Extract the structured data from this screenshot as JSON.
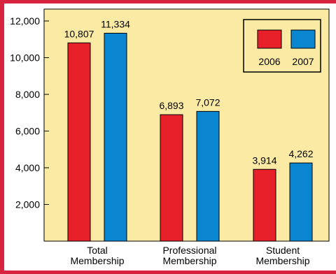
{
  "chart_data": {
    "type": "bar",
    "categories": [
      [
        "Total",
        "Membership"
      ],
      [
        "Professional",
        "Membership"
      ],
      [
        "Student",
        "Membership"
      ]
    ],
    "series": [
      {
        "name": "2006",
        "values": [
          10807,
          6893,
          3914
        ],
        "labels": [
          "10,807",
          "6,893",
          "3,914"
        ],
        "color": "#e8202a"
      },
      {
        "name": "2007",
        "values": [
          11334,
          7072,
          4262
        ],
        "labels": [
          "11,334",
          "7,072",
          "4,262"
        ],
        "color": "#0a86d0"
      }
    ],
    "ylim": [
      0,
      12000
    ],
    "yticks": [
      {
        "value": 2000,
        "label": "2,000"
      },
      {
        "value": 4000,
        "label": "4,000"
      },
      {
        "value": 6000,
        "label": "6,000"
      },
      {
        "value": 8000,
        "label": "8,000"
      },
      {
        "value": 10000,
        "label": "10,000"
      },
      {
        "value": 12000,
        "label": "12,000"
      }
    ],
    "grid": false,
    "legend": "top-right",
    "colors": {
      "frame": "#d8243f",
      "plot_bg": "#fbeaa3",
      "outer_bg": "#ffffff"
    }
  }
}
